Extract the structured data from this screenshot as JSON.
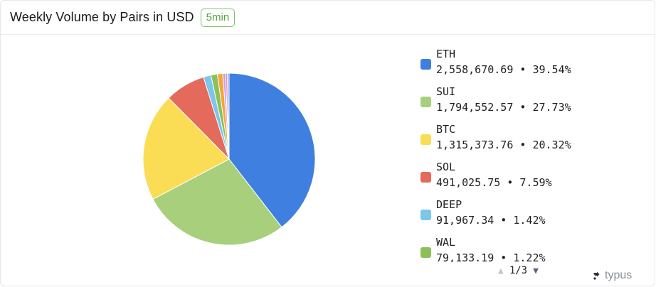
{
  "header": {
    "title": "Weekly Volume by Pairs in USD",
    "badge": "5min"
  },
  "chart_data": {
    "type": "pie",
    "slices": [
      {
        "label": "ETH",
        "value": 2558670.69,
        "value_text": "2,558,670.69",
        "percent": 39.54,
        "percent_text": "39.54%",
        "color": "#3f7fdf"
      },
      {
        "label": "SUI",
        "value": 1794552.57,
        "value_text": "1,794,552.57",
        "percent": 27.73,
        "percent_text": "27.73%",
        "color": "#a7cf7c"
      },
      {
        "label": "BTC",
        "value": 1315373.76,
        "value_text": "1,315,373.76",
        "percent": 20.32,
        "percent_text": "20.32%",
        "color": "#fbdc55"
      },
      {
        "label": "SOL",
        "value": 491025.75,
        "value_text": "491,025.75",
        "percent": 7.59,
        "percent_text": "7.59%",
        "color": "#e46a5c"
      },
      {
        "label": "DEEP",
        "value": 91967.34,
        "value_text": "91,967.34",
        "percent": 1.42,
        "percent_text": "1.42%",
        "color": "#7dc5ea"
      },
      {
        "label": "WAL",
        "value": 79133.19,
        "value_text": "79,133.19",
        "percent": 1.22,
        "percent_text": "1.22%",
        "color": "#8cc159"
      }
    ],
    "extra_slices": [
      {
        "percent": 1.0,
        "color": "#f5a53a"
      },
      {
        "percent": 0.5,
        "color": "#c89de6"
      },
      {
        "percent": 0.35,
        "color": "#e88aae"
      },
      {
        "percent": 0.33,
        "color": "#6f9fe6"
      }
    ],
    "legend_position": "right"
  },
  "legend": {
    "page": "1/3"
  },
  "brand": {
    "name": "typus"
  }
}
